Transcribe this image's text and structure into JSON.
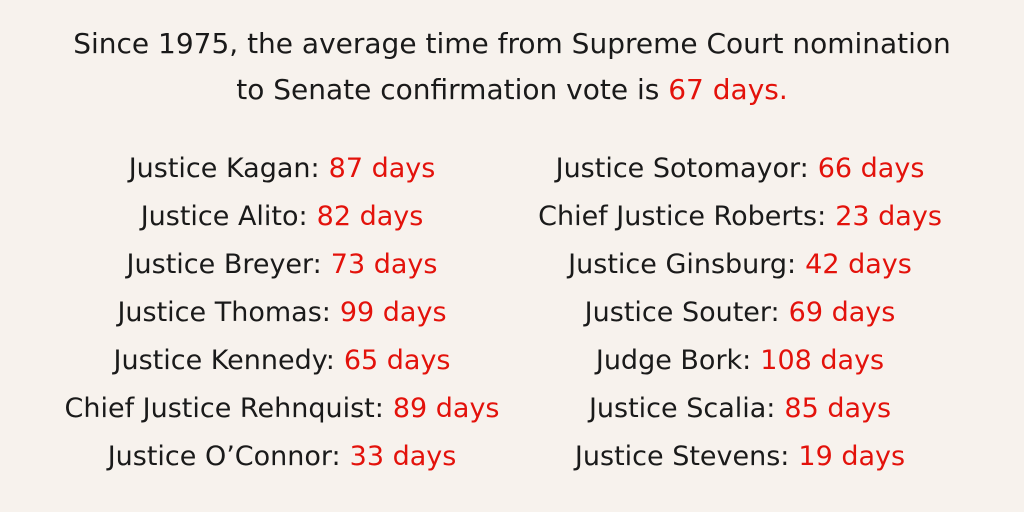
{
  "header": {
    "lines": [
      "Since 1975, the average time from Supreme Court nomination",
      "to Senate confirmation vote is"
    ],
    "highlight": "67 days."
  },
  "columns": [
    [
      {
        "name": "Justice Kagan:",
        "days": "87 days"
      },
      {
        "name": "Justice Alito:",
        "days": "82 days"
      },
      {
        "name": "Justice Breyer:",
        "days": "73 days"
      },
      {
        "name": "Justice Thomas:",
        "days": "99 days"
      },
      {
        "name": "Justice Kennedy:",
        "days": "65 days"
      },
      {
        "name": "Chief Justice Rehnquist:",
        "days": "89 days"
      },
      {
        "name": "Justice O’Connor:",
        "days": "33 days"
      }
    ],
    [
      {
        "name": "Justice Sotomayor:",
        "days": "66 days"
      },
      {
        "name": "Chief Justice Roberts:",
        "days": "23 days"
      },
      {
        "name": "Justice Ginsburg:",
        "days": "42 days"
      },
      {
        "name": "Justice Souter:",
        "days": "69 days"
      },
      {
        "name": "Judge Bork:",
        "days": "108 days"
      },
      {
        "name": "Justice Scalia:",
        "days": "85 days"
      },
      {
        "name": "Justice Stevens:",
        "days": "19 days"
      }
    ]
  ]
}
